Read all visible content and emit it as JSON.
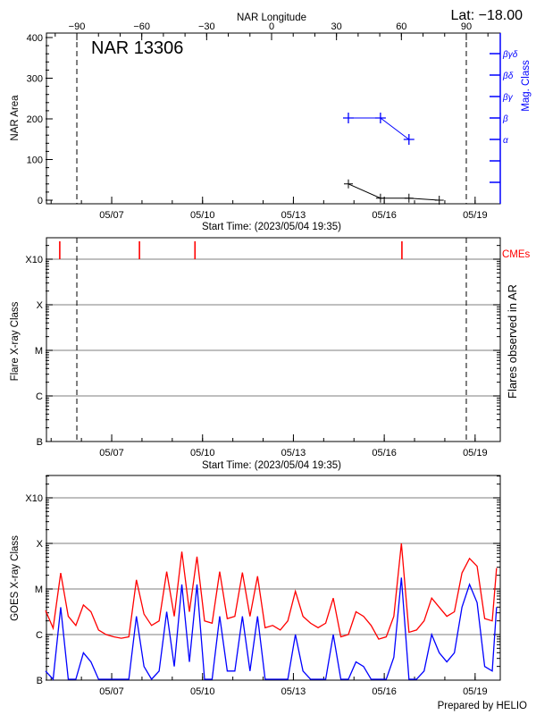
{
  "header": {
    "lat_label": "Lat: −18.00",
    "footer": "Prepared by HELIO"
  },
  "colors": {
    "axis": "#000000",
    "grid": "#999999",
    "mag_class": "#0000ff",
    "cme": "#ff0000",
    "goes_long": "#ff0000",
    "goes_short": "#0000ff"
  },
  "chart_data": [
    {
      "type": "line",
      "title": "NAR 13306",
      "start": "2023/05/04 19:35",
      "xlabel": "Start Time: (2023/05/04 19:35)",
      "x_tick_labels": [
        "05/07",
        "05/10",
        "05/13",
        "05/16",
        "05/19"
      ],
      "top_axis": {
        "label": "NAR Longitude",
        "ticks": [
          "-90",
          "-60",
          "-30",
          "0",
          "30",
          "60",
          "90"
        ],
        "limb_longitudes": [
          -90,
          90
        ]
      },
      "ylabel": "NAR Area",
      "ylim": [
        0,
        400
      ],
      "y_ticks": [
        "0",
        "100",
        "200",
        "300",
        "400"
      ],
      "right_axis": {
        "label": "Mag. Class",
        "ticks": [
          "α",
          "β",
          "βγ",
          "βδ",
          "βγδ"
        ]
      },
      "area": {
        "x": [
          "05/14 19:35",
          "05/15 21:00",
          "05/16 19:35",
          "05/17 19:35"
        ],
        "y": [
          40,
          5,
          5,
          0
        ]
      },
      "mag_class": {
        "x": [
          "05/14 19:35",
          "05/15 21:00",
          "05/16 19:35"
        ],
        "y": [
          "β",
          "β",
          "α"
        ]
      },
      "grid": false
    },
    {
      "type": "scatter",
      "xlabel": "Start Time: (2023/05/04 19:35)",
      "x_tick_labels": [
        "05/07",
        "05/10",
        "05/13",
        "05/16",
        "05/19"
      ],
      "ylabel": "Flare X-ray Class",
      "right_label": "Flares observed in AR",
      "y_ticks": [
        "B",
        "C",
        "M",
        "X",
        "X10"
      ],
      "cme_label": "CMEs",
      "cmes": [
        "05/05 06:50",
        "05/07 22:00",
        "05/09 18:00",
        "05/16 14:00"
      ],
      "flares": [],
      "grid": true
    },
    {
      "type": "line",
      "ylabel": "GOES X-ray Class",
      "x_tick_labels": [
        "05/07",
        "05/10",
        "05/13",
        "05/16",
        "05/19"
      ],
      "y_ticks": [
        "B",
        "C",
        "M",
        "X",
        "X10"
      ],
      "y_scale": "log",
      "y_unit_note": "log10 flux (W/m²): B=-7, C=-6, M=-5, X=-4, X10=-3",
      "x": [
        "05/04 19:35",
        "05/05 01:35",
        "05/05 07:35",
        "05/05 13:35",
        "05/05 19:35",
        "05/06 01:35",
        "05/06 07:35",
        "05/06 13:35",
        "05/06 19:35",
        "05/07 01:35",
        "05/07 07:35",
        "05/07 13:35",
        "05/07 19:35",
        "05/08 01:35",
        "05/08 07:35",
        "05/08 13:35",
        "05/08 19:35",
        "05/09 01:35",
        "05/09 07:35",
        "05/09 13:35",
        "05/09 19:35",
        "05/10 01:35",
        "05/10 07:35",
        "05/10 13:35",
        "05/10 19:35",
        "05/11 01:35",
        "05/11 07:35",
        "05/11 13:35",
        "05/11 19:35",
        "05/12 01:35",
        "05/12 07:35",
        "05/12 13:35",
        "05/12 19:35",
        "05/13 01:35",
        "05/13 07:35",
        "05/13 13:35",
        "05/13 19:35",
        "05/14 01:35",
        "05/14 07:35",
        "05/14 13:35",
        "05/14 19:35",
        "05/15 01:35",
        "05/15 07:35",
        "05/15 13:35",
        "05/15 19:35",
        "05/16 01:35",
        "05/16 07:35",
        "05/16 13:35",
        "05/16 19:35",
        "05/17 01:35",
        "05/17 07:35",
        "05/17 13:35",
        "05/17 19:35",
        "05/18 01:35",
        "05/18 07:35",
        "05/18 13:35",
        "05/18 19:35",
        "05/19 01:35",
        "05/19 07:35",
        "05/19 13:35",
        "05/19 17:00"
      ],
      "series": [
        {
          "key": "long",
          "values": [
            -5.47,
            -5.86,
            -4.65,
            -5.6,
            -5.8,
            -5.35,
            -5.5,
            -5.9,
            -6.0,
            -6.05,
            -6.08,
            -6.05,
            -4.8,
            -5.55,
            -5.8,
            -5.7,
            -4.62,
            -5.6,
            -4.18,
            -5.5,
            -4.29,
            -5.7,
            -5.75,
            -4.62,
            -5.65,
            -5.6,
            -4.64,
            -5.6,
            -4.72,
            -5.85,
            -5.8,
            -5.9,
            -5.7,
            -5.05,
            -5.6,
            -5.75,
            -5.85,
            -5.75,
            -5.2,
            -6.05,
            -6.0,
            -5.5,
            -5.6,
            -5.8,
            -6.1,
            -6.05,
            -5.6,
            -4.0,
            -5.95,
            -5.9,
            -5.7,
            -5.2,
            -5.4,
            -5.6,
            -5.5,
            -4.65,
            -4.33,
            -4.5,
            -5.65,
            -5.7,
            -4.54
          ]
        },
        {
          "key": "short",
          "values": [
            -6.8,
            -7,
            -5.4,
            -7,
            -7,
            -6.4,
            -6.6,
            -7,
            -7,
            -7,
            -7,
            -7,
            -5.6,
            -6.7,
            -7,
            -6.8,
            -5.5,
            -6.7,
            -4.9,
            -6.6,
            -4.9,
            -7,
            -7,
            -5.6,
            -6.8,
            -6.8,
            -5.6,
            -6.8,
            -5.6,
            -7,
            -7,
            -7,
            -7,
            -6.0,
            -6.8,
            -7,
            -7,
            -7,
            -6.0,
            -7,
            -7,
            -6.6,
            -6.7,
            -7,
            -7,
            -7,
            -6.5,
            -4.75,
            -7,
            -7,
            -6.8,
            -6.0,
            -6.4,
            -6.6,
            -6.4,
            -5.4,
            -4.9,
            -5.3,
            -6.7,
            -6.8,
            -5.4
          ]
        }
      ],
      "grid": true
    }
  ]
}
